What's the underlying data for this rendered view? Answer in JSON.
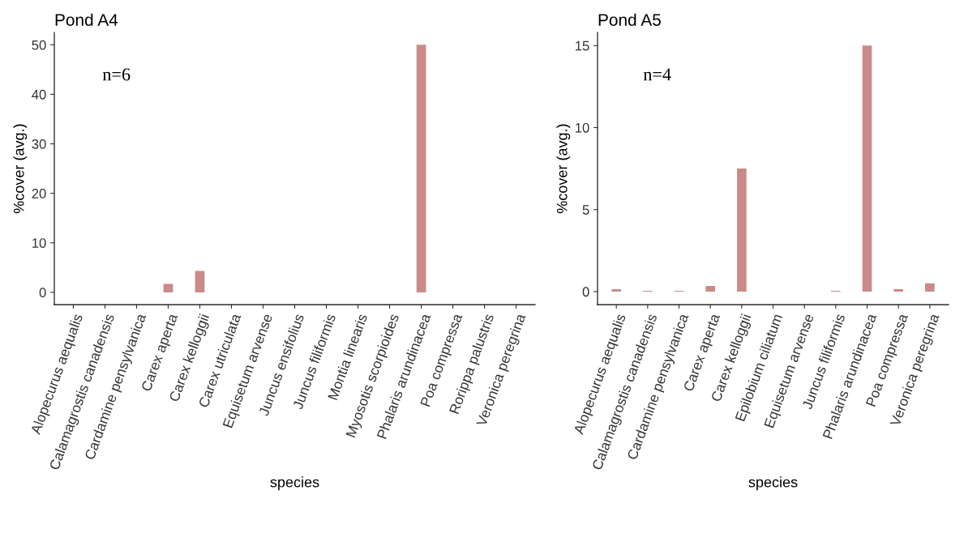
{
  "chart_data": [
    {
      "type": "bar",
      "title": "Pond A4",
      "xlabel": "species",
      "ylabel": "%cover (avg.)",
      "annotations": [
        "n=6"
      ],
      "categories": [
        "Alopecurus aequalis",
        "Calamagrostis canadensis",
        "Cardamine pensylvanica",
        "Carex aperta",
        "Carex kelloggii",
        "Carex utriculata",
        "Equisetum arvense",
        "Juncus ensifolius",
        "Juncus filiformis",
        "Montia linearis",
        "Myosotis scorpioides",
        "Phalaris arundinacea",
        "Poa compressa",
        "Rorippa palustris",
        "Veronica peregrina"
      ],
      "values": [
        0,
        0,
        0,
        1.7,
        4.3,
        0,
        0,
        0,
        0,
        0,
        0,
        50,
        0,
        0,
        0
      ],
      "color": "#c98a88",
      "ylim": [
        -2.5,
        52.5
      ],
      "yticks": [
        0,
        10,
        20,
        30,
        40,
        50
      ],
      "grid": false,
      "legend": false
    },
    {
      "type": "bar",
      "title": "Pond A5",
      "xlabel": "species",
      "ylabel": "%cover (avg.)",
      "annotations": [
        "n=4"
      ],
      "categories": [
        "Alopecurus aequalis",
        "Calamagrostis canadensis",
        "Cardamine pensylvanica",
        "Carex aperta",
        "Carex kelloggii",
        "Epilobium ciliatum",
        "Equisetum arvense",
        "Juncus filiformis",
        "Phalaris arundinacea",
        "Poa compressa",
        "Veronica peregrina"
      ],
      "values": [
        0.15,
        0.05,
        0.05,
        0.35,
        7.5,
        0,
        0,
        0.05,
        15,
        0.15,
        0.5
      ],
      "color": "#c98a88",
      "ylim": [
        -0.8,
        15.8
      ],
      "yticks": [
        0,
        5,
        10,
        15
      ],
      "grid": false,
      "legend": false
    }
  ]
}
